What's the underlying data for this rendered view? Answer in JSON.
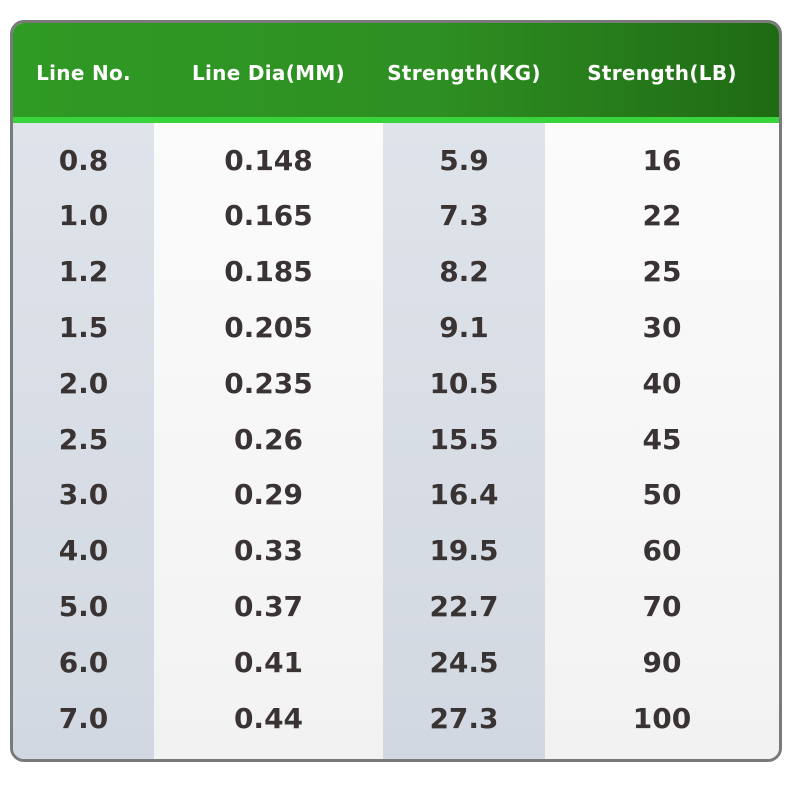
{
  "table": {
    "headers": [
      "Line No.",
      "Line Dia(MM)",
      "Strength(KG)",
      "Strength(LB)"
    ],
    "rows": [
      [
        "0.8",
        "0.148",
        "5.9",
        "16"
      ],
      [
        "1.0",
        "0.165",
        "7.3",
        "22"
      ],
      [
        "1.2",
        "0.185",
        "8.2",
        "25"
      ],
      [
        "1.5",
        "0.205",
        "9.1",
        "30"
      ],
      [
        "2.0",
        "0.235",
        "10.5",
        "40"
      ],
      [
        "2.5",
        "0.26",
        "15.5",
        "45"
      ],
      [
        "3.0",
        "0.29",
        "16.4",
        "50"
      ],
      [
        "4.0",
        "0.33",
        "19.5",
        "60"
      ],
      [
        "5.0",
        "0.37",
        "22.7",
        "70"
      ],
      [
        "6.0",
        "0.41",
        "24.5",
        "90"
      ],
      [
        "7.0",
        "0.44",
        "27.3",
        "100"
      ]
    ]
  },
  "colors": {
    "header_green": "#2e8f22",
    "header_dark_green": "#1f6a14",
    "header_accent_line": "#39d43c",
    "shaded_column": "#d8dde5",
    "text": "#3a3333",
    "border": "#7a7a7a"
  }
}
